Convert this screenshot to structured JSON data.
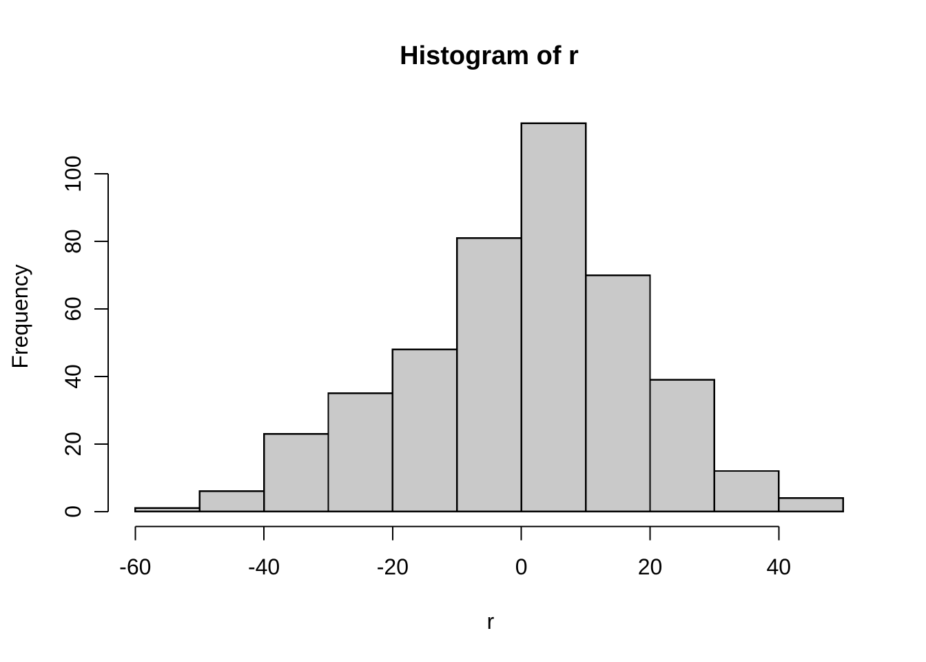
{
  "chart_data": {
    "type": "bar",
    "subtype": "histogram",
    "title": "Histogram of r",
    "xlabel": "r",
    "ylabel": "Frequency",
    "bin_edges": [
      -60,
      -50,
      -40,
      -30,
      -20,
      -10,
      0,
      10,
      20,
      30,
      40,
      50
    ],
    "counts": [
      1,
      6,
      23,
      35,
      48,
      81,
      115,
      70,
      39,
      12,
      4
    ],
    "x_ticks": [
      -60,
      -40,
      -20,
      0,
      20,
      40
    ],
    "y_ticks": [
      0,
      20,
      40,
      60,
      80,
      100
    ],
    "xlim": [
      -60,
      50
    ],
    "ylim": [
      0,
      115
    ],
    "grid": false,
    "legend": false,
    "colors": {
      "bar_fill": "#c9c9c9",
      "bar_stroke": "#000000",
      "axis": "#000000",
      "text": "#000000",
      "background": "#ffffff"
    }
  }
}
